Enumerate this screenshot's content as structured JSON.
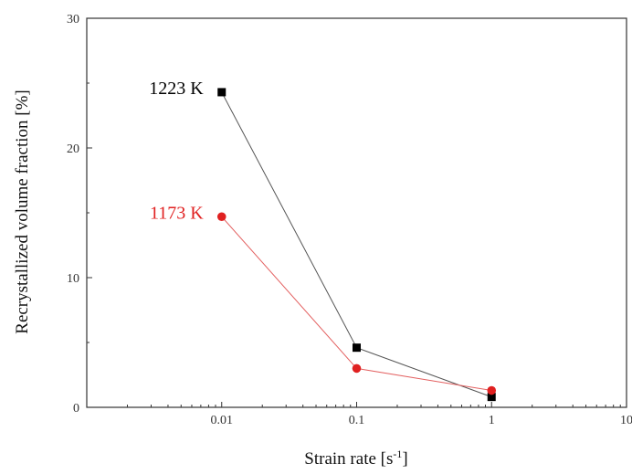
{
  "chart_data": {
    "type": "line",
    "x_scale": "log",
    "x_ticks": [
      0.01,
      0.1,
      1,
      10
    ],
    "x_tick_labels": [
      "0.01",
      "0.1",
      "1",
      "10"
    ],
    "y_ticks": [
      0,
      10,
      20,
      30
    ],
    "y_tick_labels": [
      "0",
      "10",
      "20",
      "30"
    ],
    "xlim": [
      0.001,
      10
    ],
    "ylim": [
      0,
      30
    ],
    "xlabel_main": "Strain rate [s",
    "xlabel_sup": "-1",
    "xlabel_end": "]",
    "ylabel": "Recrystallized volume fraction [%]",
    "grid": false,
    "series": [
      {
        "name": "1223 K",
        "color": "#000000",
        "line_color": "#555555",
        "marker": "square",
        "x": [
          0.01,
          0.1,
          1
        ],
        "y": [
          24.3,
          4.6,
          0.8
        ]
      },
      {
        "name": "1173 K",
        "color": "#e02020",
        "line_color": "#e36060",
        "marker": "circle",
        "x": [
          0.01,
          0.1,
          1
        ],
        "y": [
          14.7,
          3.0,
          1.3
        ]
      }
    ]
  }
}
